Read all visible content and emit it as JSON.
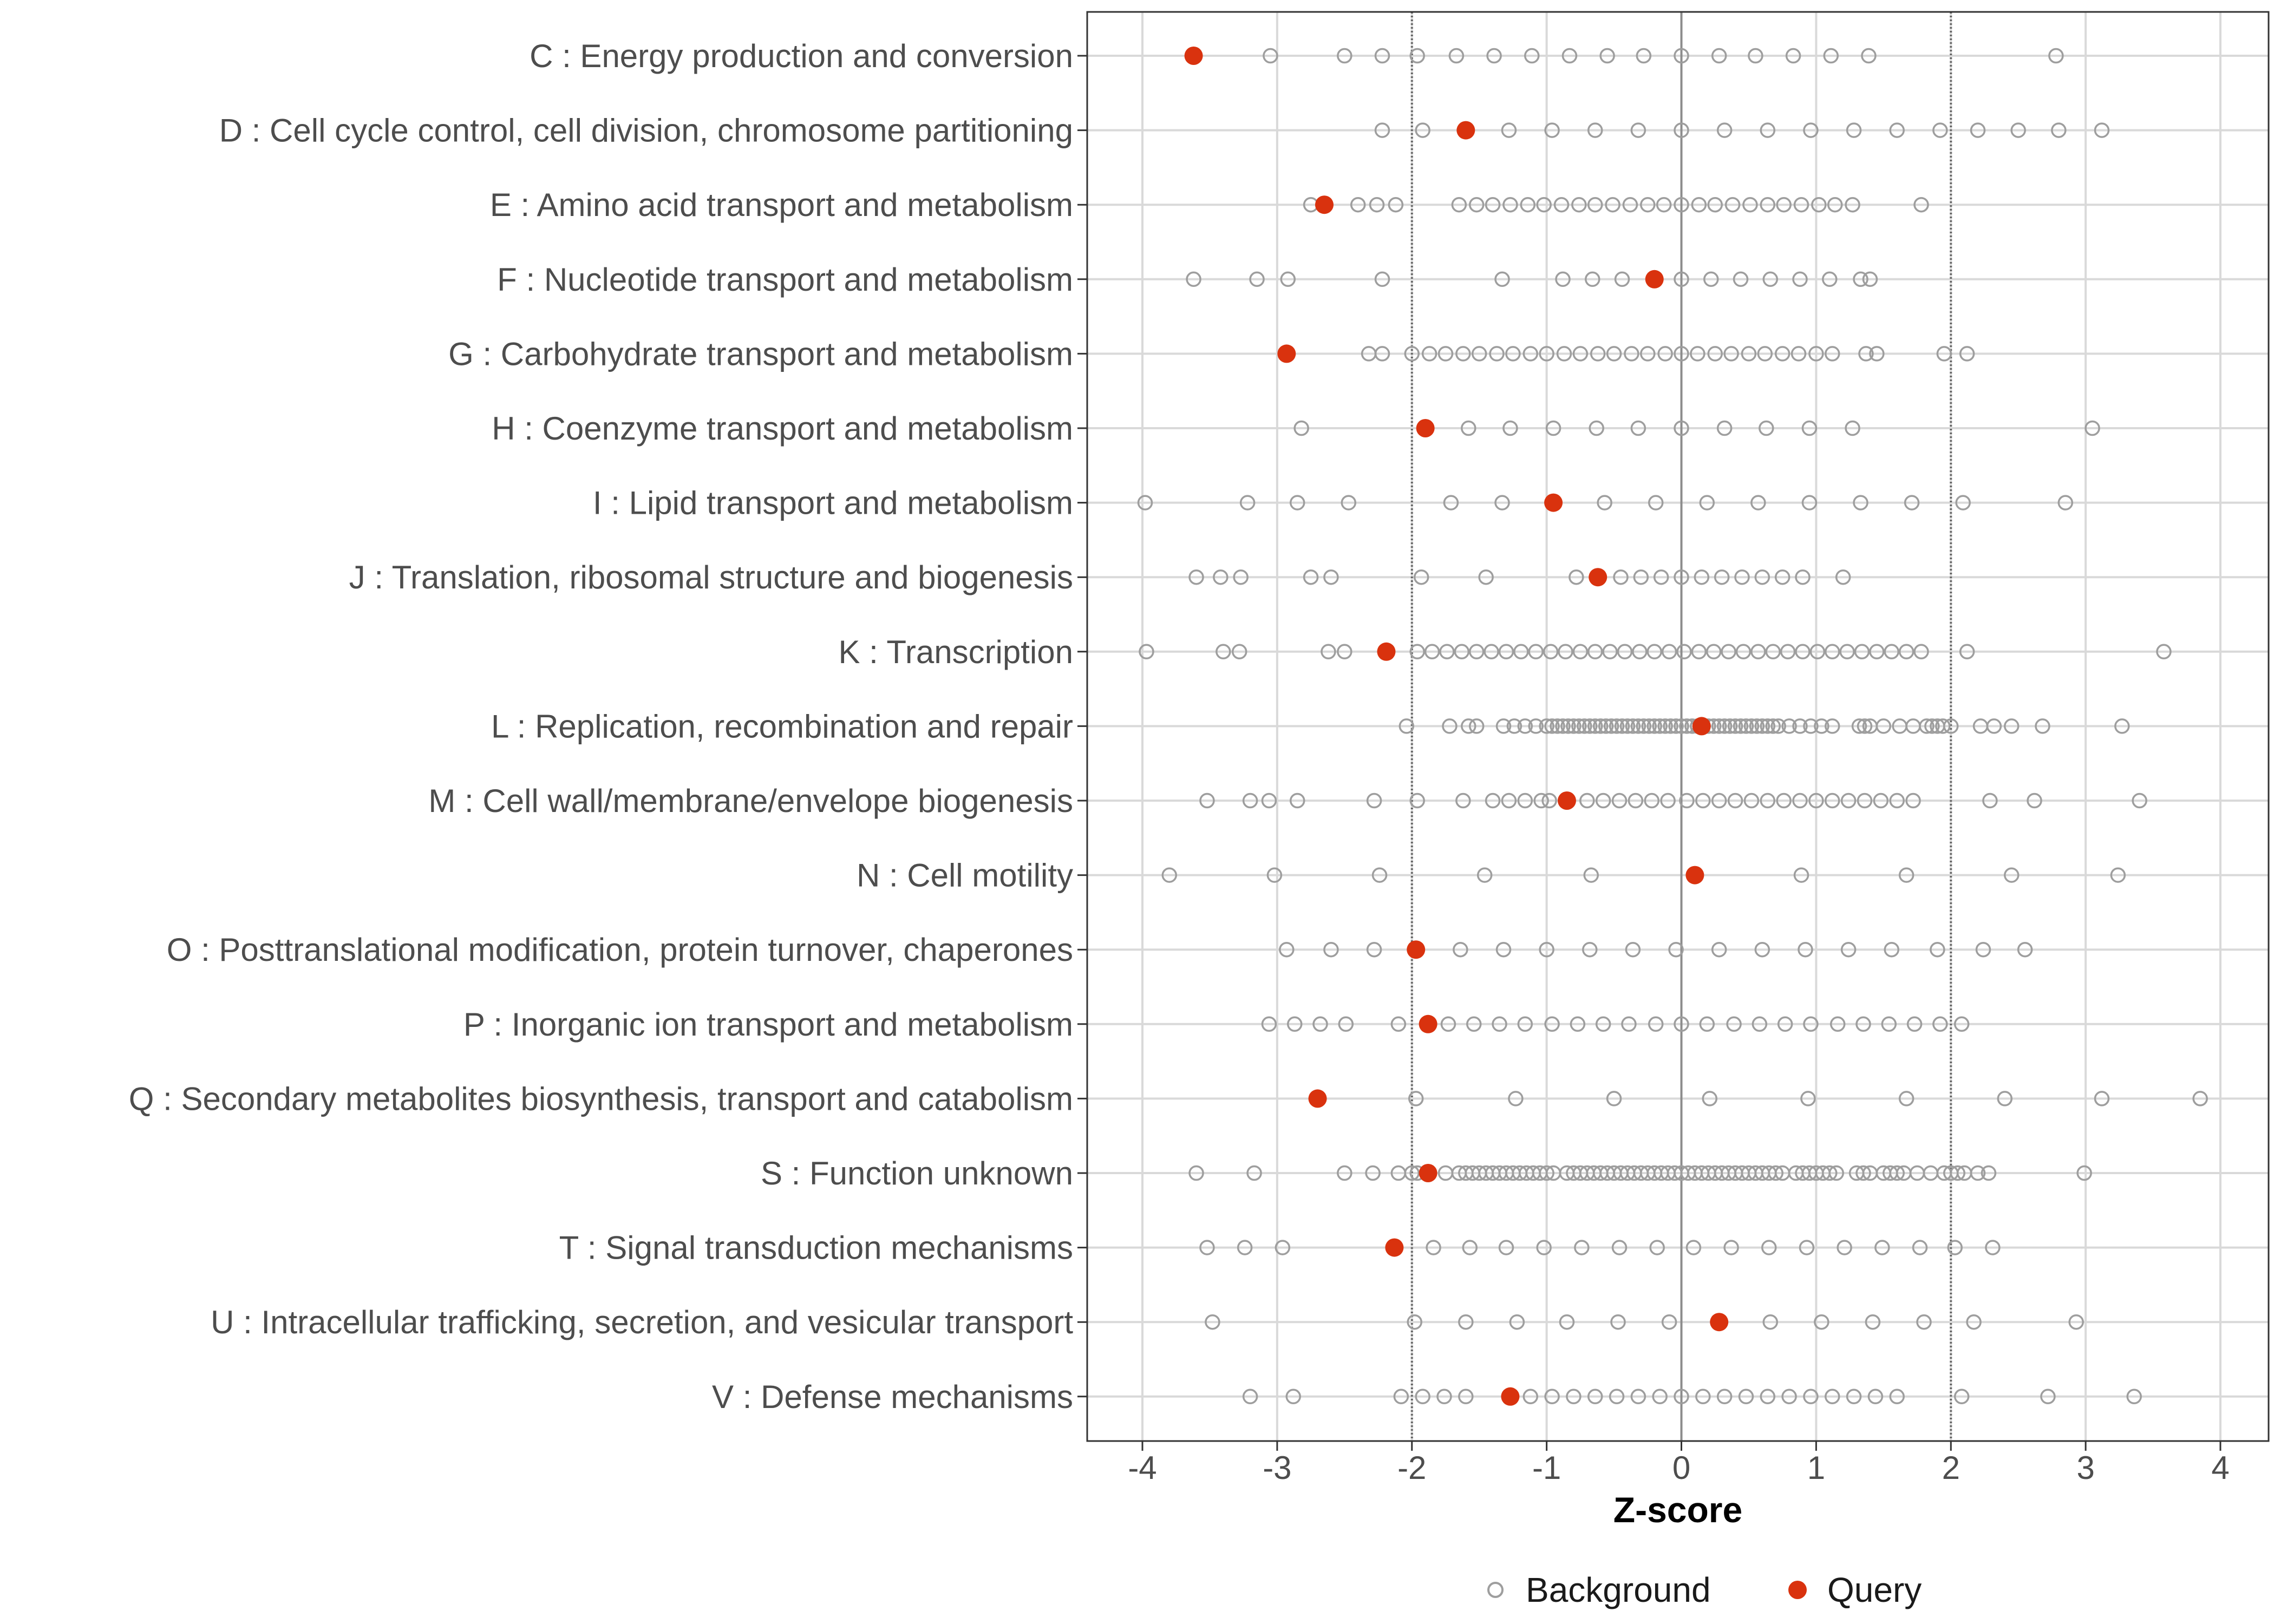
{
  "chart_data": {
    "type": "scatter",
    "title": "",
    "xlabel": "Z-score",
    "ylabel": "",
    "xlim": [
      -4.4,
      4.35
    ],
    "xticks": [
      -4,
      -3,
      -2,
      -1,
      0,
      1,
      2,
      3,
      4
    ],
    "xtick_labels": [
      "-4",
      "-3",
      "-2",
      "-1",
      "0",
      "1",
      "2",
      "3",
      "4"
    ],
    "reference_lines": [
      -2,
      2
    ],
    "zero_line": 0,
    "grid": true,
    "legend": {
      "position": "bottom",
      "entries": [
        {
          "key": "background",
          "label": "Background"
        },
        {
          "key": "query",
          "label": "Query"
        }
      ]
    },
    "colors": {
      "background_marker": "#9e9e9e",
      "query_marker": "#d9320e",
      "grid": "#d9d9d9",
      "reference_line": "#666666",
      "zero_line": "#8c8c8c",
      "panel_border": "#333333"
    },
    "categories": [
      {
        "label": "C : Energy production and conversion",
        "query": -3.62,
        "background": [
          -3.05,
          -2.5,
          -2.22,
          -1.96,
          -1.67,
          -1.39,
          -1.11,
          -0.83,
          -0.55,
          -0.28,
          0.0,
          0.28,
          0.55,
          0.83,
          1.11,
          1.39,
          2.78
        ]
      },
      {
        "label": "D : Cell cycle control, cell division, chromosome partitioning",
        "query": -1.6,
        "background": [
          -2.22,
          -1.92,
          -1.28,
          -0.96,
          -0.64,
          -0.32,
          0.0,
          0.32,
          0.64,
          0.96,
          1.28,
          1.6,
          1.92,
          2.2,
          2.5,
          2.8,
          3.12
        ]
      },
      {
        "label": "E : Amino acid transport and metabolism",
        "query": -2.65,
        "background": [
          -2.75,
          -2.4,
          -2.26,
          -2.12,
          -1.65,
          -1.52,
          -1.4,
          -1.27,
          -1.14,
          -1.02,
          -0.89,
          -0.76,
          -0.64,
          -0.51,
          -0.38,
          -0.25,
          -0.13,
          0.0,
          0.13,
          0.25,
          0.38,
          0.51,
          0.64,
          0.76,
          0.89,
          1.02,
          1.14,
          1.27,
          1.78
        ]
      },
      {
        "label": "F : Nucleotide transport and metabolism",
        "query": -0.2,
        "background": [
          -3.62,
          -3.15,
          -2.92,
          -2.22,
          -1.33,
          -0.88,
          -0.66,
          -0.44,
          0.0,
          0.22,
          0.44,
          0.66,
          0.88,
          1.1,
          1.33,
          1.4
        ]
      },
      {
        "label": "G : Carbohydrate transport and metabolism",
        "query": -2.93,
        "background": [
          -2.32,
          -2.22,
          -2.0,
          -1.87,
          -1.75,
          -1.62,
          -1.5,
          -1.37,
          -1.25,
          -1.12,
          -1.0,
          -0.87,
          -0.75,
          -0.62,
          -0.5,
          -0.37,
          -0.25,
          -0.12,
          0.0,
          0.12,
          0.25,
          0.37,
          0.5,
          0.62,
          0.75,
          0.87,
          1.0,
          1.12,
          1.37,
          1.45,
          1.95,
          2.12
        ]
      },
      {
        "label": "H : Coenzyme transport and metabolism",
        "query": -1.9,
        "background": [
          -2.82,
          -1.58,
          -1.27,
          -0.95,
          -0.63,
          -0.32,
          0.0,
          0.32,
          0.63,
          0.95,
          1.27,
          3.05
        ]
      },
      {
        "label": "I : Lipid transport and metabolism",
        "query": -0.95,
        "background": [
          -3.98,
          -3.22,
          -2.85,
          -2.47,
          -1.71,
          -1.33,
          -0.57,
          -0.19,
          0.19,
          0.57,
          0.95,
          1.33,
          1.71,
          2.09,
          2.85
        ]
      },
      {
        "label": "J : Translation, ribosomal structure and biogenesis",
        "query": -0.62,
        "background": [
          -3.6,
          -3.42,
          -3.27,
          -2.75,
          -2.6,
          -1.93,
          -1.45,
          -0.78,
          -0.45,
          -0.3,
          -0.15,
          0.0,
          0.15,
          0.3,
          0.45,
          0.6,
          0.75,
          0.9,
          1.2
        ]
      },
      {
        "label": "K : Transcription",
        "query": -2.19,
        "background": [
          -3.97,
          -3.4,
          -3.28,
          -2.62,
          -2.5,
          -1.96,
          -1.85,
          -1.74,
          -1.63,
          -1.52,
          -1.41,
          -1.3,
          -1.19,
          -1.08,
          -0.97,
          -0.86,
          -0.75,
          -0.64,
          -0.53,
          -0.42,
          -0.31,
          -0.2,
          -0.09,
          0.02,
          0.13,
          0.24,
          0.35,
          0.46,
          0.57,
          0.68,
          0.79,
          0.9,
          1.01,
          1.12,
          1.23,
          1.34,
          1.45,
          1.56,
          1.67,
          1.78,
          2.12,
          3.58
        ]
      },
      {
        "label": "L : Replication, recombination and repair",
        "query": 0.15,
        "background": [
          -2.04,
          -1.72,
          -1.58,
          -1.52,
          -1.32,
          -1.24,
          -1.16,
          -1.08,
          -1.0,
          -0.96,
          -0.92,
          -0.88,
          -0.84,
          -0.8,
          -0.76,
          -0.72,
          -0.68,
          -0.64,
          -0.6,
          -0.56,
          -0.52,
          -0.48,
          -0.44,
          -0.4,
          -0.36,
          -0.32,
          -0.28,
          -0.24,
          -0.2,
          -0.16,
          -0.12,
          -0.08,
          -0.04,
          0.0,
          0.04,
          0.08,
          0.12,
          0.16,
          0.2,
          0.24,
          0.28,
          0.32,
          0.36,
          0.4,
          0.44,
          0.48,
          0.52,
          0.56,
          0.6,
          0.64,
          0.68,
          0.72,
          0.8,
          0.88,
          0.96,
          1.04,
          1.12,
          1.32,
          1.36,
          1.4,
          1.5,
          1.62,
          1.72,
          1.82,
          1.86,
          1.9,
          1.94,
          2.0,
          2.22,
          2.32,
          2.45,
          2.68,
          3.27
        ]
      },
      {
        "label": "M : Cell wall/membrane/envelope biogenesis",
        "query": -0.85,
        "background": [
          -3.52,
          -3.2,
          -3.06,
          -2.85,
          -2.28,
          -1.96,
          -1.62,
          -1.4,
          -1.28,
          -1.16,
          -1.04,
          -0.98,
          -0.7,
          -0.58,
          -0.46,
          -0.34,
          -0.22,
          -0.1,
          0.04,
          0.16,
          0.28,
          0.4,
          0.52,
          0.64,
          0.76,
          0.88,
          1.0,
          1.12,
          1.24,
          1.36,
          1.48,
          1.6,
          1.72,
          2.29,
          2.62,
          3.4
        ]
      },
      {
        "label": "N : Cell motility",
        "query": 0.1,
        "background": [
          -3.8,
          -3.02,
          -2.24,
          -1.46,
          -0.67,
          0.89,
          1.67,
          2.45,
          3.24
        ]
      },
      {
        "label": "O : Posttranslational modification, protein turnover, chaperones",
        "query": -1.97,
        "background": [
          -2.93,
          -2.6,
          -2.28,
          -1.64,
          -1.32,
          -1.0,
          -0.68,
          -0.36,
          -0.04,
          0.28,
          0.6,
          0.92,
          1.24,
          1.56,
          1.9,
          2.24,
          2.55
        ]
      },
      {
        "label": "P : Inorganic ion transport and metabolism",
        "query": -1.88,
        "background": [
          -3.06,
          -2.87,
          -2.68,
          -2.49,
          -2.1,
          -1.73,
          -1.54,
          -1.35,
          -1.16,
          -0.96,
          -0.77,
          -0.58,
          -0.39,
          -0.19,
          0.0,
          0.19,
          0.39,
          0.58,
          0.77,
          0.96,
          1.16,
          1.35,
          1.54,
          1.73,
          1.92,
          2.08
        ]
      },
      {
        "label": "Q : Secondary metabolites biosynthesis, transport and catabolism",
        "query": -2.7,
        "background": [
          -1.97,
          -1.23,
          -0.5,
          0.21,
          0.94,
          1.67,
          2.4,
          3.12,
          3.85
        ]
      },
      {
        "label": "S : Function unknown",
        "query": -1.88,
        "background": [
          -3.6,
          -3.17,
          -2.5,
          -2.29,
          -2.1,
          -2.0,
          -1.96,
          -1.75,
          -1.65,
          -1.6,
          -1.55,
          -1.5,
          -1.45,
          -1.4,
          -1.35,
          -1.3,
          -1.25,
          -1.2,
          -1.15,
          -1.1,
          -1.05,
          -1.0,
          -0.95,
          -0.85,
          -0.8,
          -0.75,
          -0.7,
          -0.65,
          -0.6,
          -0.55,
          -0.5,
          -0.45,
          -0.4,
          -0.35,
          -0.3,
          -0.25,
          -0.2,
          -0.15,
          -0.1,
          -0.05,
          0.0,
          0.05,
          0.1,
          0.15,
          0.2,
          0.25,
          0.3,
          0.35,
          0.4,
          0.45,
          0.5,
          0.55,
          0.6,
          0.65,
          0.7,
          0.75,
          0.85,
          0.9,
          0.95,
          1.0,
          1.05,
          1.1,
          1.15,
          1.3,
          1.35,
          1.4,
          1.5,
          1.55,
          1.6,
          1.65,
          1.75,
          1.85,
          1.95,
          2.0,
          2.05,
          2.1,
          2.2,
          2.28,
          2.99
        ]
      },
      {
        "label": "T : Signal transduction mechanisms",
        "query": -2.13,
        "background": [
          -3.52,
          -3.24,
          -2.96,
          -1.84,
          -1.57,
          -1.3,
          -1.02,
          -0.74,
          -0.46,
          -0.18,
          0.09,
          0.37,
          0.65,
          0.93,
          1.21,
          1.49,
          1.77,
          2.03,
          2.31
        ]
      },
      {
        "label": "U : Intracellular trafficking, secretion, and vesicular transport",
        "query": 0.28,
        "background": [
          -3.48,
          -1.98,
          -1.6,
          -1.22,
          -0.85,
          -0.47,
          -0.09,
          0.66,
          1.04,
          1.42,
          1.8,
          2.17,
          2.93
        ]
      },
      {
        "label": "V : Defense mechanisms",
        "query": -1.27,
        "background": [
          -3.2,
          -2.88,
          -2.08,
          -1.92,
          -1.76,
          -1.6,
          -1.12,
          -0.96,
          -0.8,
          -0.64,
          -0.48,
          -0.32,
          -0.16,
          0.0,
          0.16,
          0.32,
          0.48,
          0.64,
          0.8,
          0.96,
          1.12,
          1.28,
          1.44,
          1.6,
          2.08,
          2.72,
          3.36
        ]
      }
    ]
  }
}
